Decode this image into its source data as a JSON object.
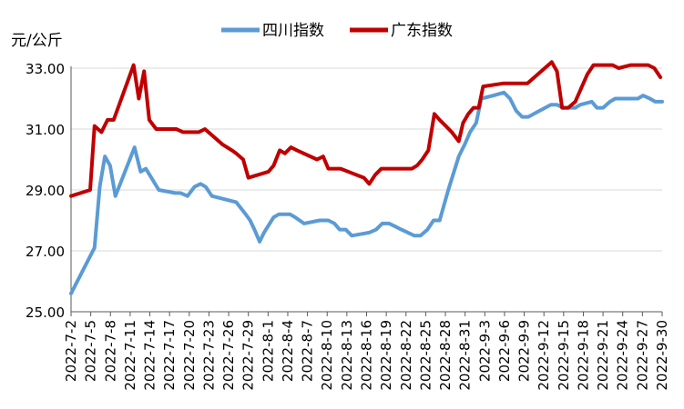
{
  "chart_data": {
    "type": "line",
    "ylabel": "元/公斤",
    "ylim": [
      25.0,
      33.0
    ],
    "yticks": [
      "25.00",
      "27.00",
      "29.00",
      "31.00",
      "33.00"
    ],
    "xticks": [
      "2022-7-2",
      "2022-7-5",
      "2022-7-8",
      "2022-7-11",
      "2022-7-14",
      "2022-7-17",
      "2022-7-20",
      "2022-7-23",
      "2022-7-26",
      "2022-7-29",
      "2022-8-1",
      "2022-8-4",
      "2022-8-7",
      "2022-8-10",
      "2022-8-13",
      "2022-8-16",
      "2022-8-19",
      "2022-8-22",
      "2022-8-25",
      "2022-8-28",
      "2022-8-31",
      "2022-9-3",
      "2022-9-6",
      "2022-9-9",
      "2022-9-12",
      "2022-9-15",
      "2022-9-18",
      "2022-9-21",
      "2022-9-24",
      "2022-9-27",
      "2022-9-30"
    ],
    "legend_position": "top",
    "grid": "horizontal",
    "series": [
      {
        "name": "四川指数",
        "color": "#5b9bd5",
        "points": [
          [
            0,
            25.6
          ],
          [
            2.7,
            27.1
          ],
          [
            3.3,
            29.1
          ],
          [
            3.9,
            30.1
          ],
          [
            4.5,
            29.8
          ],
          [
            5.1,
            28.8
          ],
          [
            7.3,
            30.4
          ],
          [
            8.0,
            29.6
          ],
          [
            8.6,
            29.7
          ],
          [
            10.1,
            29.0
          ],
          [
            12.0,
            28.9
          ],
          [
            12.6,
            28.9
          ],
          [
            13.4,
            28.8
          ],
          [
            14.2,
            29.1
          ],
          [
            14.9,
            29.2
          ],
          [
            15.5,
            29.1
          ],
          [
            16.2,
            28.8
          ],
          [
            19.0,
            28.6
          ],
          [
            20.1,
            28.2
          ],
          [
            20.6,
            28.0
          ],
          [
            21.1,
            27.7
          ],
          [
            21.7,
            27.3
          ],
          [
            22.2,
            27.6
          ],
          [
            23.3,
            28.1
          ],
          [
            23.9,
            28.2
          ],
          [
            25.2,
            28.2
          ],
          [
            25.8,
            28.1
          ],
          [
            26.8,
            27.9
          ],
          [
            28.6,
            28.0
          ],
          [
            29.6,
            28.0
          ],
          [
            30.3,
            27.9
          ],
          [
            30.9,
            27.7
          ],
          [
            31.6,
            27.7
          ],
          [
            32.3,
            27.5
          ],
          [
            34.3,
            27.6
          ],
          [
            35.1,
            27.7
          ],
          [
            35.8,
            27.9
          ],
          [
            36.6,
            27.9
          ],
          [
            37.3,
            27.8
          ],
          [
            38.0,
            27.7
          ],
          [
            39.5,
            27.5
          ],
          [
            40.2,
            27.5
          ],
          [
            41.0,
            27.7
          ],
          [
            41.7,
            28.0
          ],
          [
            42.4,
            28.0
          ],
          [
            43.4,
            29.0
          ],
          [
            44.6,
            30.1
          ],
          [
            45.3,
            30.5
          ],
          [
            45.9,
            30.9
          ],
          [
            46.6,
            31.2
          ],
          [
            47.2,
            32.0
          ],
          [
            48.6,
            32.1
          ],
          [
            49.8,
            32.2
          ],
          [
            50.5,
            32.0
          ],
          [
            51.2,
            31.6
          ],
          [
            51.9,
            31.4
          ],
          [
            52.6,
            31.4
          ],
          [
            53.9,
            31.6
          ],
          [
            55.2,
            31.8
          ],
          [
            55.9,
            31.8
          ],
          [
            56.6,
            31.7
          ],
          [
            57.3,
            31.7
          ],
          [
            58.0,
            31.7
          ],
          [
            58.6,
            31.8
          ],
          [
            59.9,
            31.9
          ],
          [
            60.5,
            31.7
          ],
          [
            61.2,
            31.7
          ],
          [
            62.0,
            31.9
          ],
          [
            62.6,
            32.0
          ],
          [
            63.9,
            32.0
          ],
          [
            64.5,
            32.0
          ],
          [
            65.2,
            32.0
          ],
          [
            65.8,
            32.1
          ],
          [
            66.6,
            32.0
          ],
          [
            67.2,
            31.9
          ],
          [
            68.0,
            31.9
          ]
        ]
      },
      {
        "name": "广东指数",
        "color": "#c00000",
        "points": [
          [
            0,
            28.8
          ],
          [
            2.2,
            29.0
          ],
          [
            2.7,
            31.1
          ],
          [
            3.5,
            30.9
          ],
          [
            4.2,
            31.3
          ],
          [
            4.9,
            31.3
          ],
          [
            7.2,
            33.1
          ],
          [
            7.8,
            32.0
          ],
          [
            8.4,
            32.9
          ],
          [
            9.0,
            31.3
          ],
          [
            9.8,
            31.0
          ],
          [
            12.1,
            31.0
          ],
          [
            12.9,
            30.9
          ],
          [
            14.7,
            30.9
          ],
          [
            15.4,
            31.0
          ],
          [
            17.4,
            30.5
          ],
          [
            18.5,
            30.3
          ],
          [
            19.0,
            30.2
          ],
          [
            19.8,
            30.0
          ],
          [
            20.4,
            29.4
          ],
          [
            22.7,
            29.6
          ],
          [
            23.3,
            29.8
          ],
          [
            24.0,
            30.3
          ],
          [
            24.6,
            30.2
          ],
          [
            25.3,
            30.4
          ],
          [
            26.0,
            30.3
          ],
          [
            28.3,
            30.0
          ],
          [
            29.0,
            30.1
          ],
          [
            29.6,
            29.7
          ],
          [
            31.0,
            29.7
          ],
          [
            33.7,
            29.4
          ],
          [
            34.3,
            29.2
          ],
          [
            35.0,
            29.5
          ],
          [
            35.7,
            29.7
          ],
          [
            36.4,
            29.7
          ],
          [
            39.2,
            29.7
          ],
          [
            39.8,
            29.8
          ],
          [
            40.4,
            30.0
          ],
          [
            41.1,
            30.3
          ],
          [
            41.8,
            31.5
          ],
          [
            42.4,
            31.3
          ],
          [
            43.1,
            31.1
          ],
          [
            43.8,
            30.9
          ],
          [
            44.6,
            30.6
          ],
          [
            45.1,
            31.2
          ],
          [
            45.7,
            31.5
          ],
          [
            46.3,
            31.7
          ],
          [
            46.9,
            31.7
          ],
          [
            47.4,
            32.4
          ],
          [
            49.7,
            32.5
          ],
          [
            50.4,
            32.5
          ],
          [
            51.1,
            32.5
          ],
          [
            51.8,
            32.5
          ],
          [
            52.5,
            32.5
          ],
          [
            55.3,
            33.2
          ],
          [
            55.9,
            32.9
          ],
          [
            56.5,
            31.7
          ],
          [
            57.2,
            31.7
          ],
          [
            58.0,
            31.9
          ],
          [
            59.4,
            32.8
          ],
          [
            60.1,
            33.1
          ],
          [
            61.6,
            33.1
          ],
          [
            62.3,
            33.1
          ],
          [
            63.0,
            33.0
          ],
          [
            64.4,
            33.1
          ],
          [
            65.7,
            33.1
          ],
          [
            66.4,
            33.1
          ],
          [
            67.1,
            33.0
          ],
          [
            67.8,
            32.7
          ]
        ]
      }
    ]
  }
}
